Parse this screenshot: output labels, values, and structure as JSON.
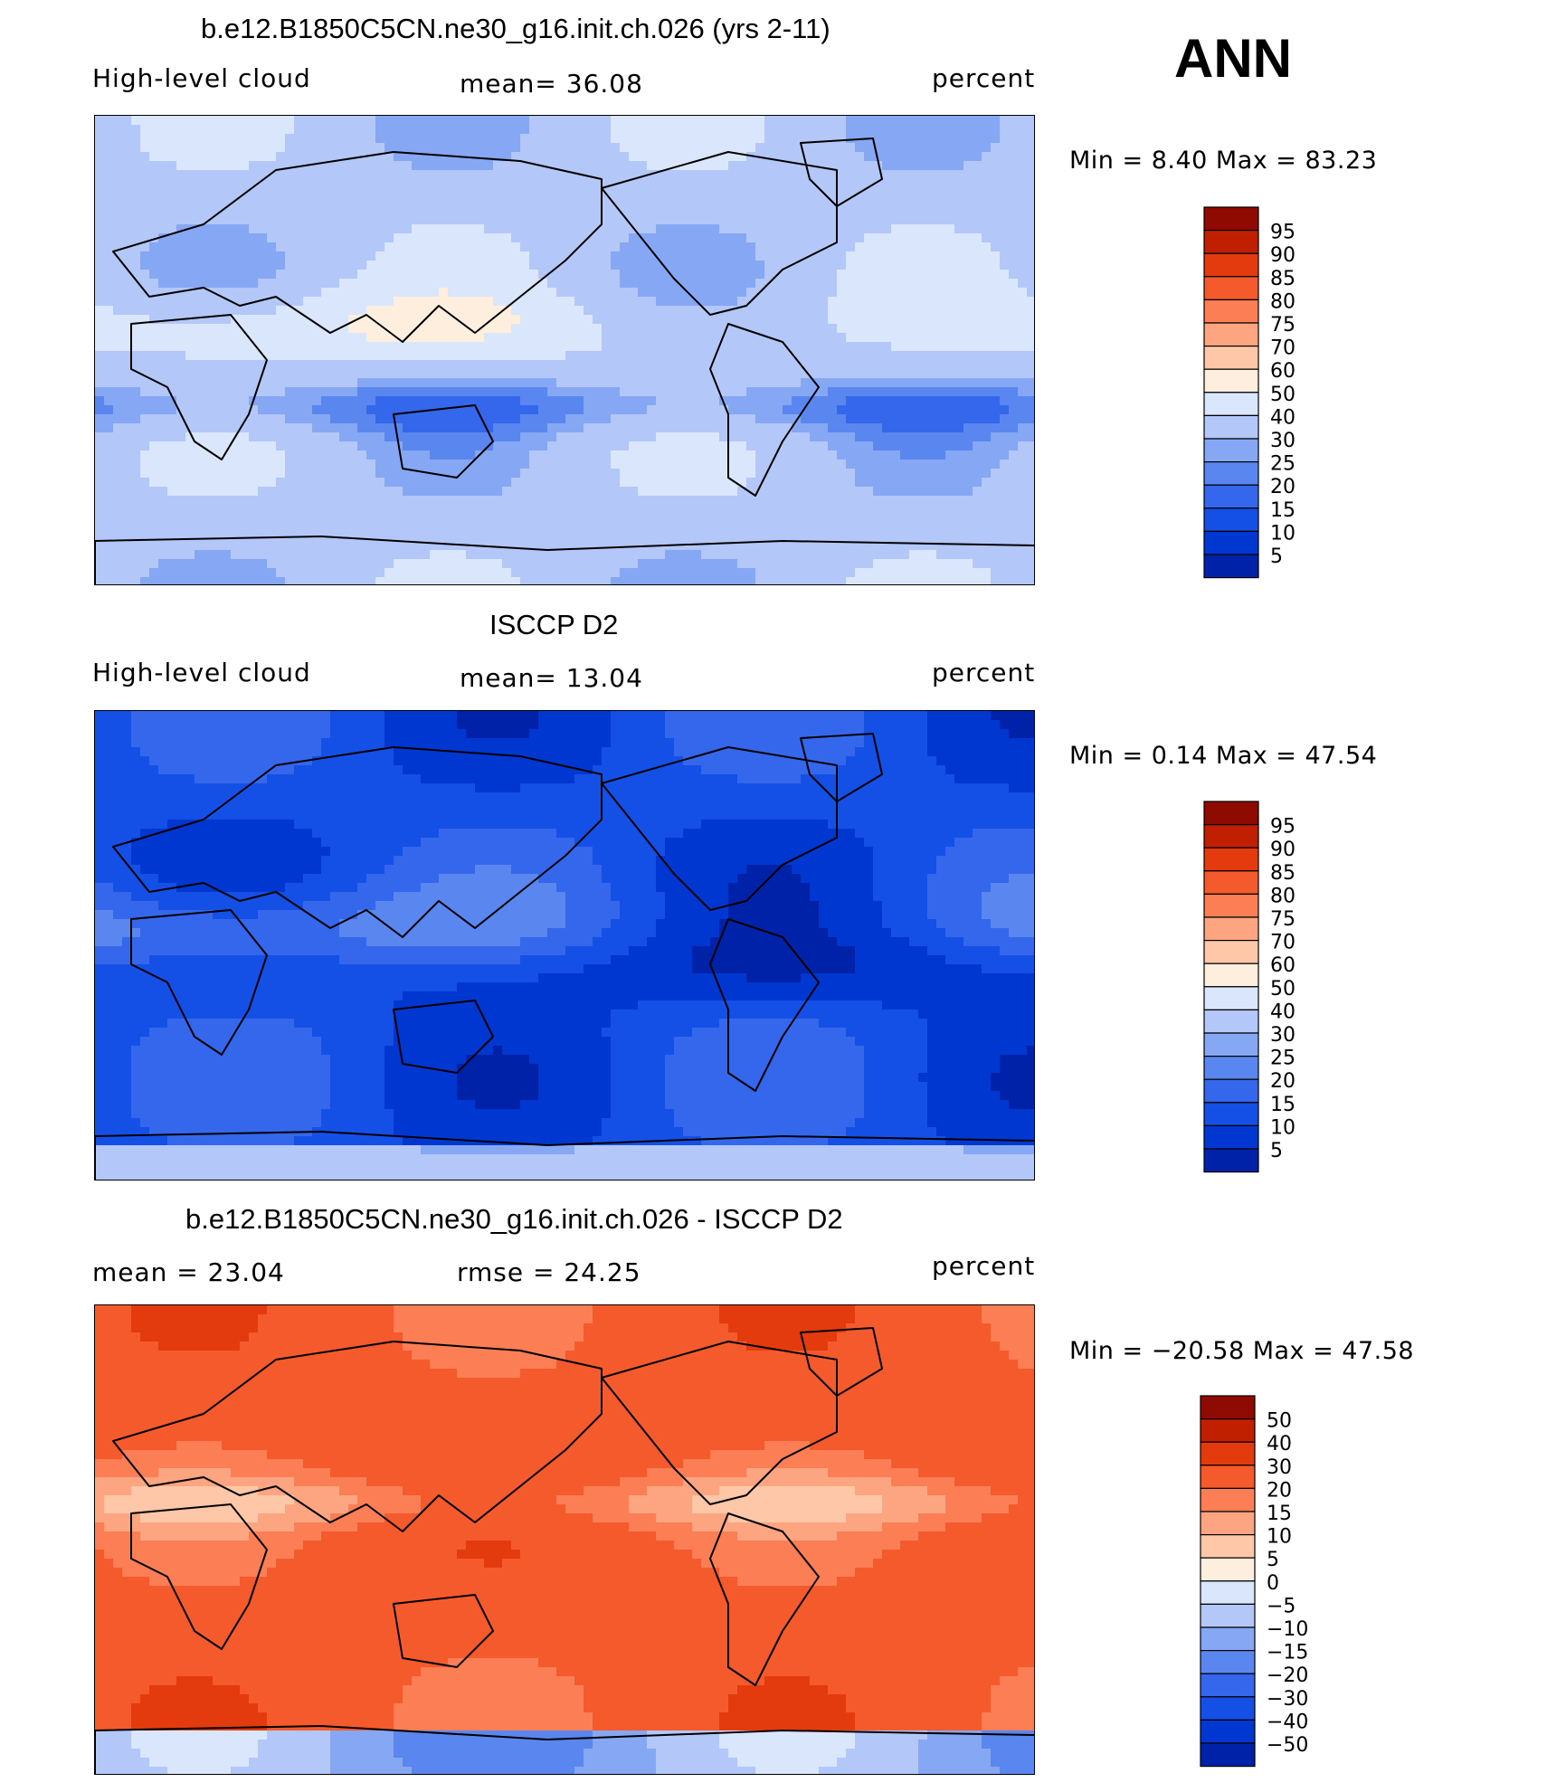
{
  "season_label": "ANN",
  "colors": {
    "land_outline": "#000000",
    "palette_abs": [
      "#00007f",
      "#0022a8",
      "#0037d0",
      "#1450e6",
      "#3567ec",
      "#5a86f0",
      "#86a7f4",
      "#b3c8f8",
      "#dae6fc",
      "#fdeede",
      "#fdc7a8",
      "#fda480",
      "#fc7e55",
      "#f55a2c",
      "#e33b0d",
      "#c01f00",
      "#8f0a00"
    ],
    "palette_diff": [
      "#00007f",
      "#0022a8",
      "#0037d0",
      "#1450e6",
      "#3567ec",
      "#5a86f0",
      "#86a7f4",
      "#b3c8f8",
      "#dae6fc",
      "#fdeede",
      "#fdc7a8",
      "#fda480",
      "#fc7e55",
      "#f55a2c",
      "#e33b0d",
      "#c01f00",
      "#8f0a00"
    ]
  },
  "panels": [
    {
      "id": "model",
      "title": "b.e12.B1850C5CN.ne30_g16.init.ch.026 (yrs 2-11)",
      "left_label": "High-level cloud",
      "center_label": "mean=   36.08",
      "right_label": "percent",
      "minmax": "Min =    8.40  Max =    83.23",
      "colorbar_labels": [
        "95",
        "90",
        "85",
        "80",
        "75",
        "70",
        "60",
        "50",
        "40",
        "30",
        "25",
        "20",
        "15",
        "10",
        "5"
      ]
    },
    {
      "id": "obs",
      "title": "ISCCP D2",
      "left_label": "High-level cloud",
      "center_label": "mean=   13.04",
      "right_label": "percent",
      "minmax": "Min =    0.14  Max =    47.54",
      "colorbar_labels": [
        "95",
        "90",
        "85",
        "80",
        "75",
        "70",
        "60",
        "50",
        "40",
        "30",
        "25",
        "20",
        "15",
        "10",
        "5"
      ]
    },
    {
      "id": "diff",
      "title": "b.e12.B1850C5CN.ne30_g16.init.ch.026 - ISCCP D2",
      "left_label": "mean =   23.04",
      "center_label": "rmse =   24.25",
      "right_label": "percent",
      "minmax": "Min = −20.58  Max =    47.58",
      "colorbar_labels": [
        "50",
        "40",
        "30",
        "20",
        "15",
        "10",
        "5",
        "0",
        "−5",
        "−10",
        "−15",
        "−20",
        "−30",
        "−40",
        "−50"
      ]
    }
  ],
  "chart_data": [
    {
      "type": "heatmap",
      "title": "b.e12.B1850C5CN.ne30_g16.init.ch.026 (yrs 2-11)",
      "variable": "High-level cloud",
      "units": "percent",
      "season": "ANN",
      "mean": 36.08,
      "min": 8.4,
      "max": 83.23,
      "contour_levels": [
        5,
        10,
        15,
        20,
        25,
        30,
        40,
        50,
        60,
        70,
        75,
        80,
        85,
        90,
        95
      ]
    },
    {
      "type": "heatmap",
      "title": "ISCCP D2",
      "variable": "High-level cloud",
      "units": "percent",
      "season": "ANN",
      "mean": 13.04,
      "min": 0.14,
      "max": 47.54,
      "contour_levels": [
        5,
        10,
        15,
        20,
        25,
        30,
        40,
        50,
        60,
        70,
        75,
        80,
        85,
        90,
        95
      ]
    },
    {
      "type": "heatmap",
      "title": "b.e12.B1850C5CN.ne30_g16.init.ch.026 - ISCCP D2",
      "units": "percent",
      "season": "ANN",
      "mean": 23.04,
      "rmse": 24.25,
      "min": -20.58,
      "max": 47.58,
      "contour_levels": [
        -50,
        -40,
        -30,
        -20,
        -15,
        -10,
        -5,
        0,
        5,
        10,
        15,
        20,
        30,
        40,
        50
      ]
    }
  ]
}
